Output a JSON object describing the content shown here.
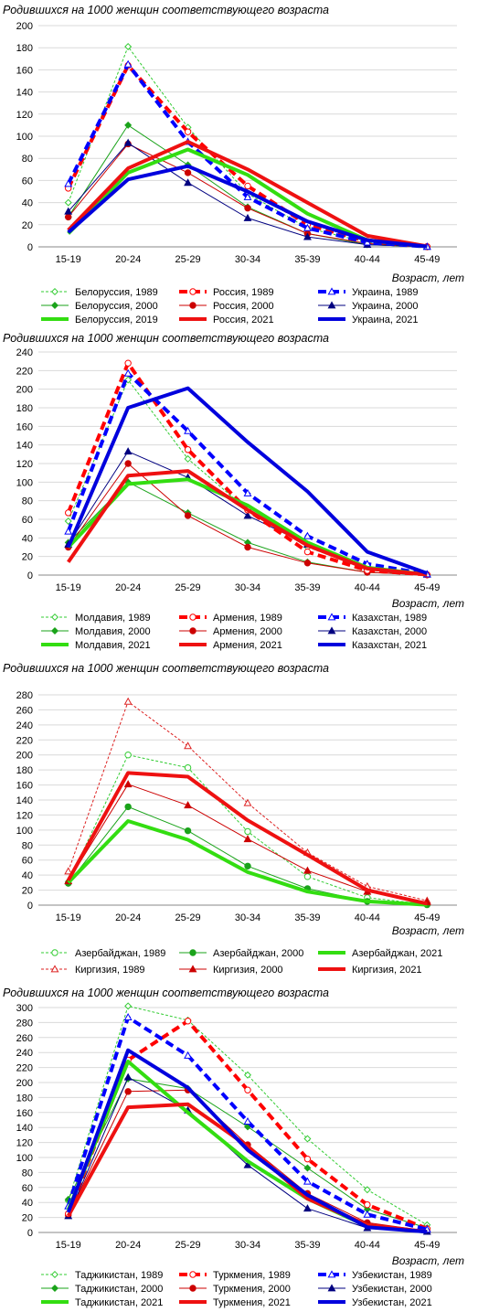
{
  "chart_data": [
    {
      "type": "line",
      "title": "Родившихся на 1000 женщин соответствующего возраста",
      "xlabel": "Возраст, лет",
      "ylabel": "",
      "categories": [
        "15-19",
        "20-24",
        "25-29",
        "30-34",
        "35-39",
        "40-44",
        "45-49"
      ],
      "ylim": [
        0,
        200
      ],
      "ytick_step": 20,
      "grid": true,
      "legend_position": "bottom",
      "series": [
        {
          "name": "Белоруссия, 1989",
          "color": "#33cc33",
          "style": "thin-dash",
          "marker": "diamond-open",
          "values": [
            40,
            181,
            108,
            48,
            17,
            4,
            0.2
          ]
        },
        {
          "name": "Россия, 1989",
          "color": "#ff0000",
          "style": "thick-dash",
          "marker": "circle-open",
          "values": [
            53,
            164,
            104,
            55,
            20,
            5,
            0.2
          ]
        },
        {
          "name": "Украина, 1989",
          "color": "#0000ff",
          "style": "thick-dash",
          "marker": "triangle-open",
          "values": [
            57,
            165,
            95,
            45,
            17,
            4,
            0.2
          ]
        },
        {
          "name": "Белоруссия, 2000",
          "color": "#1aa31a",
          "style": "thin",
          "marker": "diamond",
          "values": [
            27,
            110,
            74,
            36,
            12,
            2,
            0.1
          ]
        },
        {
          "name": "Россия, 2000",
          "color": "#cc0000",
          "style": "thin",
          "marker": "circle",
          "values": [
            27,
            93,
            67,
            35,
            12,
            3,
            0.1
          ]
        },
        {
          "name": "Украина, 2000",
          "color": "#000080",
          "style": "thin",
          "marker": "triangle",
          "values": [
            32,
            94,
            58,
            26,
            9,
            2,
            0.1
          ]
        },
        {
          "name": "Белоруссия, 2019",
          "color": "#33dd11",
          "style": "thick",
          "marker": "none",
          "values": [
            12,
            67,
            88,
            65,
            30,
            6,
            0.3
          ]
        },
        {
          "name": "Россия, 2021",
          "color": "#ee1111",
          "style": "thick",
          "marker": "none",
          "values": [
            15,
            71,
            95,
            70,
            40,
            10,
            0.6
          ]
        },
        {
          "name": "Украина, 2021",
          "color": "#0000dd",
          "style": "thick",
          "marker": "none",
          "values": [
            13,
            61,
            73,
            50,
            23,
            6,
            0.3
          ]
        }
      ]
    },
    {
      "type": "line",
      "title": "Родившихся на 1000 женщин соответствующего возраста",
      "xlabel": "Возраст, лет",
      "ylabel": "",
      "categories": [
        "15-19",
        "20-24",
        "25-29",
        "30-34",
        "35-39",
        "40-44",
        "45-49"
      ],
      "ylim": [
        0,
        240
      ],
      "ytick_step": 20,
      "grid": true,
      "legend_position": "bottom",
      "series": [
        {
          "name": "Молдавия, 1989",
          "color": "#33cc33",
          "style": "thin-dash",
          "marker": "diamond-open",
          "values": [
            58,
            210,
            125,
            70,
            30,
            7,
            0.5
          ]
        },
        {
          "name": "Армения, 1989",
          "color": "#ff0000",
          "style": "thick-dash",
          "marker": "circle-open",
          "values": [
            67,
            228,
            135,
            70,
            25,
            5,
            0.5
          ]
        },
        {
          "name": "Казахстан, 1989",
          "color": "#0000ff",
          "style": "thick-dash",
          "marker": "triangle-open",
          "values": [
            47,
            217,
            155,
            88,
            42,
            12,
            1
          ]
        },
        {
          "name": "Молдавия, 2000",
          "color": "#1aa31a",
          "style": "thin",
          "marker": "diamond",
          "values": [
            35,
            100,
            67,
            35,
            14,
            3,
            0.2
          ]
        },
        {
          "name": "Армения, 2000",
          "color": "#cc0000",
          "style": "thin",
          "marker": "circle",
          "values": [
            30,
            120,
            64,
            30,
            13,
            3,
            0.2
          ]
        },
        {
          "name": "Казахстан, 2000",
          "color": "#000080",
          "style": "thin",
          "marker": "triangle",
          "values": [
            33,
            133,
            105,
            64,
            33,
            9,
            0.6
          ]
        },
        {
          "name": "Молдавия, 2021",
          "color": "#33dd11",
          "style": "thick",
          "marker": "none",
          "values": [
            30,
            98,
            103,
            75,
            35,
            8,
            0.5
          ]
        },
        {
          "name": "Армения, 2021",
          "color": "#ee1111",
          "style": "thick",
          "marker": "none",
          "values": [
            14,
            107,
            112,
            70,
            32,
            7,
            0.5
          ]
        },
        {
          "name": "Казахстан, 2021",
          "color": "#0000dd",
          "style": "thick",
          "marker": "none",
          "values": [
            30,
            180,
            201,
            143,
            90,
            25,
            2
          ]
        }
      ]
    },
    {
      "type": "line",
      "title": "Родившихся на 1000 женщин соответствующего возраста",
      "xlabel": "Возраст, лет",
      "ylabel": "",
      "categories": [
        "15-19",
        "20-24",
        "25-29",
        "30-34",
        "35-39",
        "40-44",
        "45-49"
      ],
      "ylim": [
        0,
        280
      ],
      "ytick_step": 20,
      "grid": true,
      "legend_position": "bottom",
      "series": [
        {
          "name": "Азербайджан, 1989",
          "color": "#33cc33",
          "style": "thin-dash",
          "marker": "circle-open",
          "values": [
            30,
            200,
            183,
            98,
            38,
            10,
            1
          ]
        },
        {
          "name": "Азербайджан, 2000",
          "color": "#1aa31a",
          "style": "thin",
          "marker": "circle",
          "values": [
            29,
            131,
            99,
            52,
            22,
            5,
            0.5
          ]
        },
        {
          "name": "Азербайджан, 2021",
          "color": "#33dd11",
          "style": "thick",
          "marker": "none",
          "values": [
            30,
            112,
            87,
            44,
            18,
            5,
            0.5
          ]
        },
        {
          "name": "Киргизия, 1989",
          "color": "#dd2222",
          "style": "thin-dash",
          "marker": "triangle-open",
          "values": [
            45,
            271,
            212,
            136,
            70,
            25,
            6
          ]
        },
        {
          "name": "Киргизия, 2000",
          "color": "#cc0000",
          "style": "thin",
          "marker": "triangle",
          "values": [
            32,
            161,
            133,
            88,
            46,
            18,
            4
          ]
        },
        {
          "name": "Киргизия, 2021",
          "color": "#ee1111",
          "style": "thick",
          "marker": "none",
          "values": [
            33,
            176,
            171,
            113,
            67,
            20,
            2
          ]
        }
      ]
    },
    {
      "type": "line",
      "title": "Родившихся на 1000 женщин соответствующего возраста",
      "xlabel": "Возраст, лет",
      "ylabel": "",
      "categories": [
        "15-19",
        "20-24",
        "25-29",
        "30-34",
        "35-39",
        "40-44",
        "45-49"
      ],
      "ylim": [
        0,
        300
      ],
      "ytick_step": 20,
      "grid": true,
      "legend_position": "bottom",
      "series": [
        {
          "name": "Таджикистан, 1989",
          "color": "#33cc33",
          "style": "thin-dash",
          "marker": "diamond-open",
          "values": [
            42,
            302,
            283,
            210,
            125,
            57,
            10
          ]
        },
        {
          "name": "Туркмения, 1989",
          "color": "#ff0000",
          "style": "thick-dash",
          "marker": "circle-open",
          "values": [
            25,
            230,
            282,
            190,
            98,
            37,
            5
          ]
        },
        {
          "name": "Узбекистан, 1989",
          "color": "#0000ff",
          "style": "thick-dash",
          "marker": "triangle-open",
          "values": [
            35,
            287,
            236,
            148,
            68,
            24,
            4
          ]
        },
        {
          "name": "Таджикистан, 2000",
          "color": "#1aa31a",
          "style": "thin",
          "marker": "diamond",
          "values": [
            44,
            205,
            192,
            141,
            86,
            31,
            6
          ]
        },
        {
          "name": "Туркмения, 2000",
          "color": "#cc0000",
          "style": "thin",
          "marker": "circle",
          "values": [
            23,
            188,
            190,
            117,
            52,
            13,
            2
          ]
        },
        {
          "name": "Узбекистан, 2000",
          "color": "#000080",
          "style": "thin",
          "marker": "triangle",
          "values": [
            22,
            207,
            163,
            90,
            32,
            6,
            1
          ]
        },
        {
          "name": "Таджикистан, 2021",
          "color": "#33dd11",
          "style": "thick",
          "marker": "none",
          "values": [
            30,
            228,
            160,
            95,
            45,
            8,
            1
          ]
        },
        {
          "name": "Туркмения, 2021",
          "color": "#ee1111",
          "style": "thick",
          "marker": "none",
          "values": [
            22,
            167,
            171,
            115,
            45,
            10,
            1
          ]
        },
        {
          "name": "Узбекистан, 2021",
          "color": "#0000dd",
          "style": "thick",
          "marker": "none",
          "values": [
            27,
            243,
            193,
            110,
            50,
            7,
            1
          ]
        }
      ]
    }
  ]
}
